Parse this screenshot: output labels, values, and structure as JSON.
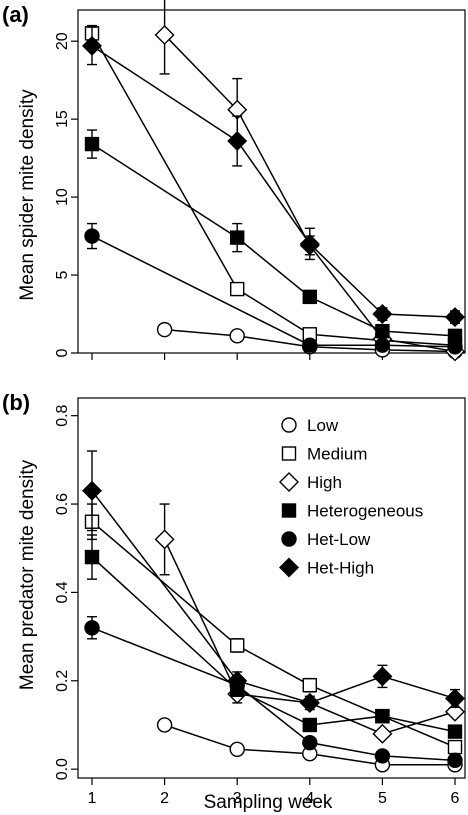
{
  "chart_data": [
    {
      "type": "line",
      "panel_label": "(a)",
      "xlabel": "",
      "ylabel": "Mean spider mite density",
      "ylim": [
        0,
        22
      ],
      "yticks": [
        0,
        5,
        10,
        15,
        20
      ],
      "ytick_labels": [
        "0",
        "5",
        "10",
        "15",
        "20"
      ],
      "xlim": [
        1,
        6
      ],
      "xticks": [
        1,
        2,
        3,
        4,
        5,
        6
      ],
      "xtick_labels": [
        "",
        "",
        "",
        "",
        "",
        ""
      ],
      "grid": false,
      "series": [
        {
          "name": "Low",
          "marker": "circle",
          "fill": "#ffffff",
          "x": [
            2,
            3,
            4,
            5,
            6
          ],
          "values": [
            1.5,
            1.1,
            0.4,
            0.2,
            0.1
          ],
          "errors": [
            0,
            0,
            0,
            0,
            0
          ]
        },
        {
          "name": "Medium",
          "marker": "square",
          "fill": "#ffffff",
          "x": [
            1,
            3,
            4,
            5,
            6
          ],
          "values": [
            20.5,
            4.1,
            1.2,
            0.8,
            0.5
          ],
          "errors": [
            0.5,
            0.4,
            0,
            0,
            0
          ]
        },
        {
          "name": "High",
          "marker": "diamond",
          "fill": "#ffffff",
          "x": [
            2,
            3,
            4,
            5,
            6
          ],
          "values": [
            20.4,
            15.6,
            6.9,
            0.9,
            0.1
          ],
          "errors": [
            2.5,
            2.0,
            0.6,
            0,
            0
          ]
        },
        {
          "name": "Heterogeneous",
          "marker": "square",
          "fill": "#000000",
          "x": [
            1,
            3,
            4,
            5,
            6
          ],
          "values": [
            13.4,
            7.4,
            3.6,
            1.4,
            1.1
          ],
          "errors": [
            0.9,
            0.9,
            0.4,
            0,
            0
          ]
        },
        {
          "name": "Het-Low",
          "marker": "circle",
          "fill": "#000000",
          "x": [
            1,
            4,
            5,
            6
          ],
          "values": [
            7.5,
            0.5,
            0.5,
            0.4
          ],
          "errors": [
            0.8,
            0,
            0,
            0
          ]
        },
        {
          "name": "Het-High",
          "marker": "diamond",
          "fill": "#000000",
          "x": [
            1,
            3,
            4,
            5,
            6
          ],
          "values": [
            19.7,
            13.6,
            7.0,
            2.5,
            2.3
          ],
          "errors": [
            1.2,
            1.6,
            1.0,
            0.4,
            0.4
          ]
        }
      ]
    },
    {
      "type": "line",
      "panel_label": "(b)",
      "xlabel": "Sampling week",
      "ylabel": "Mean predator mite density",
      "ylim": [
        -0.02,
        0.84
      ],
      "yticks": [
        0.0,
        0.2,
        0.4,
        0.6,
        0.8
      ],
      "ytick_labels": [
        "0.0",
        "0.2",
        "0.4",
        "0.6",
        "0.8"
      ],
      "xlim": [
        1,
        6
      ],
      "xticks": [
        1,
        2,
        3,
        4,
        5,
        6
      ],
      "xtick_labels": [
        "1",
        "2",
        "3",
        "4",
        "5",
        "6"
      ],
      "grid": false,
      "legend": "top-right",
      "series": [
        {
          "name": "Low",
          "marker": "circle",
          "fill": "#ffffff",
          "x": [
            2,
            3,
            4,
            5,
            6
          ],
          "values": [
            0.1,
            0.045,
            0.035,
            0.01,
            0.01
          ],
          "errors": [
            0,
            0,
            0,
            0,
            0
          ]
        },
        {
          "name": "Medium",
          "marker": "square",
          "fill": "#ffffff",
          "x": [
            1,
            3,
            4,
            5,
            6
          ],
          "values": [
            0.56,
            0.28,
            0.19,
            0.12,
            0.05
          ],
          "errors": [
            0.04,
            0.015,
            0.015,
            0,
            0
          ]
        },
        {
          "name": "High",
          "marker": "diamond",
          "fill": "#ffffff",
          "x": [
            2,
            3,
            4,
            5,
            6
          ],
          "values": [
            0.52,
            0.17,
            0.15,
            0.08,
            0.13
          ],
          "errors": [
            0.08,
            0.02,
            0,
            0,
            0
          ]
        },
        {
          "name": "Heterogeneous",
          "marker": "square",
          "fill": "#000000",
          "x": [
            1,
            3,
            4,
            5,
            6
          ],
          "values": [
            0.48,
            0.18,
            0.1,
            0.12,
            0.085
          ],
          "errors": [
            0.05,
            0.015,
            0,
            0,
            0
          ]
        },
        {
          "name": "Het-Low",
          "marker": "circle",
          "fill": "#000000",
          "x": [
            1,
            3,
            4,
            5,
            6
          ],
          "values": [
            0.32,
            0.19,
            0.06,
            0.03,
            0.02
          ],
          "errors": [
            0.025,
            0.01,
            0,
            0,
            0
          ]
        },
        {
          "name": "Het-High",
          "marker": "diamond",
          "fill": "#000000",
          "x": [
            1,
            3,
            4,
            5,
            6
          ],
          "values": [
            0.63,
            0.2,
            0.15,
            0.21,
            0.16
          ],
          "errors": [
            0.09,
            0.02,
            0.015,
            0.025,
            0.02
          ]
        }
      ]
    }
  ]
}
